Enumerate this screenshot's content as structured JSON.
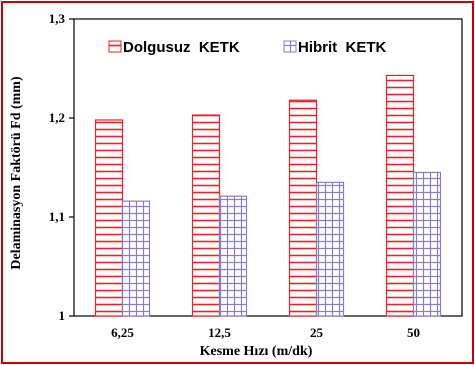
{
  "chart_data": {
    "type": "bar",
    "title": "",
    "xlabel": "Kesme Hızı  (m/dk)",
    "ylabel": "Delaminasyon  Faktörü  Fd  (mm)",
    "categories": [
      "6,25",
      "12,5",
      "25",
      "50"
    ],
    "series": [
      {
        "name": "Dolgusuz  KETK",
        "values": [
          1.198,
          1.203,
          1.218,
          1.243
        ],
        "color": "#e8232a",
        "pattern": "horizontal-lines"
      },
      {
        "name": "Hibrit  KETK",
        "values": [
          1.116,
          1.121,
          1.135,
          1.145
        ],
        "color": "#8e7cc3",
        "pattern": "small-grid"
      }
    ],
    "ylim": [
      1,
      1.3
    ],
    "yticks": [
      "1",
      "1,1",
      "1,2",
      "1,3"
    ],
    "ytick_values": [
      1.0,
      1.1,
      1.2,
      1.3
    ],
    "grid": false,
    "legend_position": "top",
    "frame_color": "#cc0000"
  }
}
